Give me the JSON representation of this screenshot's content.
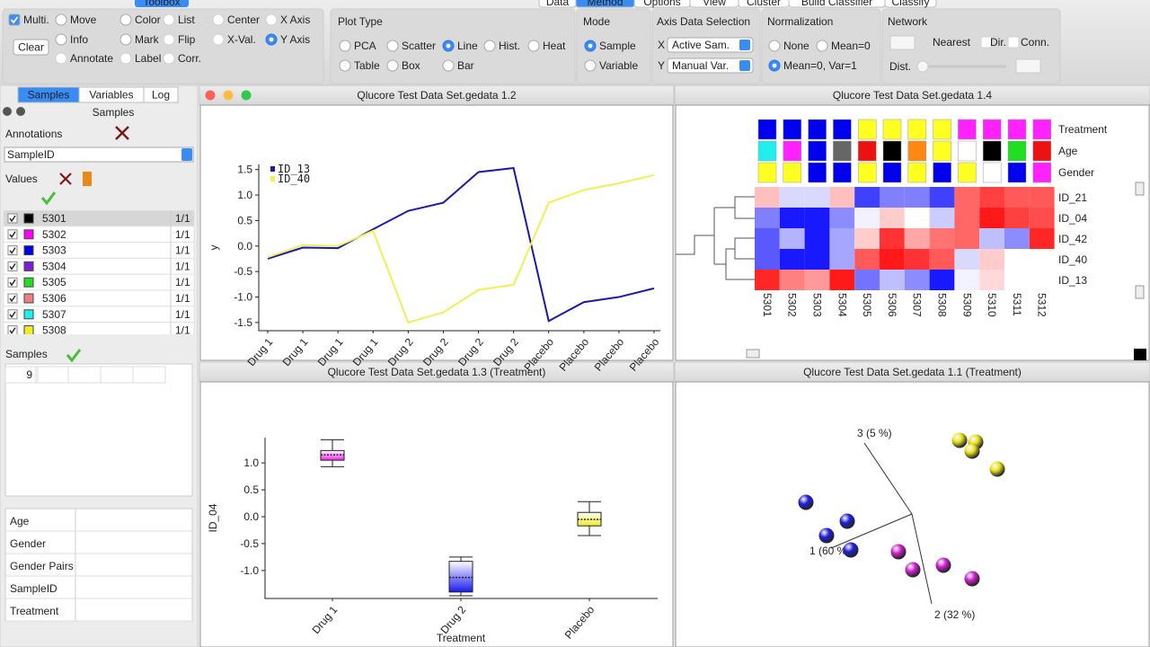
{
  "menu": {
    "tabs": [
      "Data",
      "Method",
      "Options",
      "View",
      "Cluster",
      "Build Classifier",
      "Classify"
    ]
  },
  "toolbox": {
    "title": "Toolbox",
    "multi": "Multi.",
    "clear": "Clear",
    "options": [
      "Move",
      "Info",
      "Annotate",
      "Color",
      "Mark",
      "Label",
      "List",
      "Flip",
      "Corr.",
      "Center",
      "X-Val.",
      "X Axis",
      "Y Axis"
    ]
  },
  "plot_type": {
    "title": "Plot Type",
    "options": [
      "PCA",
      "Scatter",
      "Line",
      "Hist.",
      "Heat",
      "Table",
      "Box",
      "Bar"
    ]
  },
  "mode": {
    "title": "Mode",
    "options": [
      "Sample",
      "Variable"
    ]
  },
  "axis_selection": {
    "title": "Axis Data Selection",
    "x_label": "X",
    "x_value": "Active Sam.",
    "y_label": "Y",
    "y_value": "Manual Var."
  },
  "normalization": {
    "title": "Normalization",
    "options": [
      "None",
      "Mean=0",
      "Mean=0, Var=1"
    ]
  },
  "network": {
    "title": "Network",
    "nearest": "Nearest",
    "dir": "Dir.",
    "conn": "Conn.",
    "dist": "Dist."
  },
  "sidebar": {
    "tabs": [
      "Samples",
      "Variables",
      "Log"
    ],
    "panel_title": "Samples",
    "annotations_label": "Annotations",
    "annotation_select": "SampleID",
    "values_label": "Values",
    "samples": [
      {
        "name": "5301",
        "color": "#000000",
        "count": "1/1"
      },
      {
        "name": "5302",
        "color": "#ff00ff",
        "count": "1/1"
      },
      {
        "name": "5303",
        "color": "#0000ee",
        "count": "1/1"
      },
      {
        "name": "5304",
        "color": "#7a1fd8",
        "count": "1/1"
      },
      {
        "name": "5305",
        "color": "#22dd22",
        "count": "1/1"
      },
      {
        "name": "5306",
        "color": "#f08080",
        "count": "1/1"
      },
      {
        "name": "5307",
        "color": "#22eeee",
        "count": "1/1"
      },
      {
        "name": "5308",
        "color": "#eeee22",
        "count": "1/1"
      }
    ],
    "samples_label": "Samples",
    "samples_count": 9,
    "annotation_list": [
      "Age",
      "Gender",
      "Gender Pairs",
      "SampleID",
      "Treatment"
    ]
  },
  "chart_data": [
    {
      "type": "line",
      "title": "Qlucore Test Data Set.gedata 1.2",
      "ylabel": "y",
      "categories": [
        "Drug 1",
        "Drug 1",
        "Drug 1",
        "Drug 1",
        "Drug 2",
        "Drug 2",
        "Drug 2",
        "Drug 2",
        "Placebo",
        "Placebo",
        "Placebo",
        "Placebo"
      ],
      "series": [
        {
          "name": "ID_13",
          "color": "#1a1aaa",
          "values": [
            -0.25,
            -0.03,
            -0.04,
            0.33,
            0.69,
            0.85,
            1.45,
            1.53,
            -1.47,
            -1.1,
            -1.0,
            -0.83
          ]
        },
        {
          "name": "ID_40",
          "color": "#f2ee55",
          "values": [
            -0.22,
            0.02,
            0.0,
            0.3,
            -1.5,
            -1.3,
            -0.86,
            -0.76,
            0.85,
            1.1,
            1.23,
            1.39
          ]
        }
      ],
      "ylim": [
        -1.66,
        1.6
      ],
      "yticks": [
        -1.5,
        {
          "value": -1,
          "label": "-1.0"
        },
        -0.5,
        {
          "value": 0,
          "label": "0.0"
        },
        0.5,
        {
          "value": 1,
          "label": "1.0"
        },
        1.5
      ]
    },
    {
      "type": "heatmap",
      "title": "Qlucore Test Data Set.gedata 1.4",
      "rows": [
        "ID_21",
        "ID_04",
        "ID_42",
        "ID_40",
        "ID_13"
      ],
      "columns": [
        "5301",
        "5302",
        "5303",
        "5304",
        "5305",
        "5306",
        "5307",
        "5308",
        "5309",
        "5310",
        "5311",
        "5312"
      ],
      "values": [
        [
          0.5,
          -0.3,
          -0.3,
          0.5,
          -1.5,
          -1.0,
          -1.0,
          -1.5,
          1.2,
          1.5,
          1.3,
          1.3
        ],
        [
          -1.0,
          -1.8,
          -1.8,
          -0.9,
          -0.1,
          0.4,
          0.0,
          -0.4,
          1.2,
          1.8,
          1.5,
          1.4
        ],
        [
          -1.3,
          -0.6,
          -1.8,
          -0.7,
          0.4,
          1.6,
          0.7,
          1.1,
          1.2,
          -0.5,
          -0.9,
          1.7
        ],
        [
          -1.3,
          -1.8,
          -1.8,
          -0.7,
          1.3,
          1.8,
          1.6,
          1.3,
          -0.3,
          0.4,
          0.0,
          0.0
        ],
        [
          1.7,
          1.0,
          0.8,
          1.8,
          -1.1,
          -0.5,
          -0.9,
          -1.8,
          -0.1,
          0.3,
          0.0,
          0.0
        ]
      ],
      "annotations": [
        {
          "name": "Treatment",
          "colors": [
            "#0000ee",
            "#0000ee",
            "#0000ee",
            "#0000ee",
            "#ffff22",
            "#ffff22",
            "#ffff22",
            "#ffff22",
            "#ff22ff",
            "#ff22ff",
            "#ff22ff",
            "#ff22ff"
          ]
        },
        {
          "name": "Age",
          "colors": [
            "#22eeee",
            "#ff22ff",
            "#0000ee",
            "#666666",
            "#ee1111",
            "#000000",
            "#ff8811",
            "#ffff22",
            "#ffffff",
            "#000000",
            "#22dd22",
            "#ee1111"
          ]
        },
        {
          "name": "Gender",
          "colors": [
            "#ffff22",
            "#ffff22",
            "#0000ee",
            "#0000ee",
            "#ffff22",
            "#0000ee",
            "#ffff22",
            "#0000ee",
            "#ffff22",
            "#ffffff",
            "#0000ee",
            "#ff22ff"
          ]
        }
      ]
    },
    {
      "type": "box",
      "title": "Qlucore Test Data Set.gedata 1.3 (Treatment)",
      "xlabel": "Treatment",
      "ylabel": "ID_04",
      "categories": [
        "Drug 1",
        "Drug 2",
        "Placebo"
      ],
      "boxes": [
        {
          "color": "#ee22ee",
          "min": 0.93,
          "q1": 1.05,
          "median": 1.15,
          "q3": 1.23,
          "max": 1.43
        },
        {
          "color": "#1a1aee",
          "min": -1.47,
          "q1": -1.4,
          "median": -1.13,
          "q3": -0.83,
          "max": -0.75
        },
        {
          "color": "#eeee22",
          "min": -0.35,
          "q1": -0.17,
          "median": -0.05,
          "q3": 0.08,
          "max": 0.28
        }
      ],
      "ylim": [
        -1.52,
        1.47
      ],
      "yticks": [
        {
          "value": -1,
          "label": "-1.0"
        },
        -0.5,
        {
          "value": 0,
          "label": "0.0"
        },
        0.5,
        {
          "value": 1,
          "label": "1.0"
        }
      ]
    },
    {
      "type": "scatter",
      "title": "Qlucore Test Data Set.gedata 1.1 (Treatment)",
      "axis_labels": [
        "3 (5 %)",
        "1 (60 %)",
        "2 (32 %)"
      ],
      "series": [
        {
          "color": "#2020dd",
          "x": [
            -1.18,
            -0.95,
            -0.72,
            -0.68
          ],
          "y": [
            0.13,
            -0.24,
            -0.08,
            -0.4
          ]
        },
        {
          "color": "#e8e020",
          "x": [
            0.53,
            0.71,
            0.67,
            0.95
          ],
          "y": [
            0.82,
            0.8,
            0.7,
            0.5
          ]
        },
        {
          "color": "#d020d0",
          "x": [
            -0.15,
            0.01,
            0.35,
            0.67
          ],
          "y": [
            -0.42,
            -0.62,
            -0.57,
            -0.72
          ]
        }
      ]
    }
  ]
}
